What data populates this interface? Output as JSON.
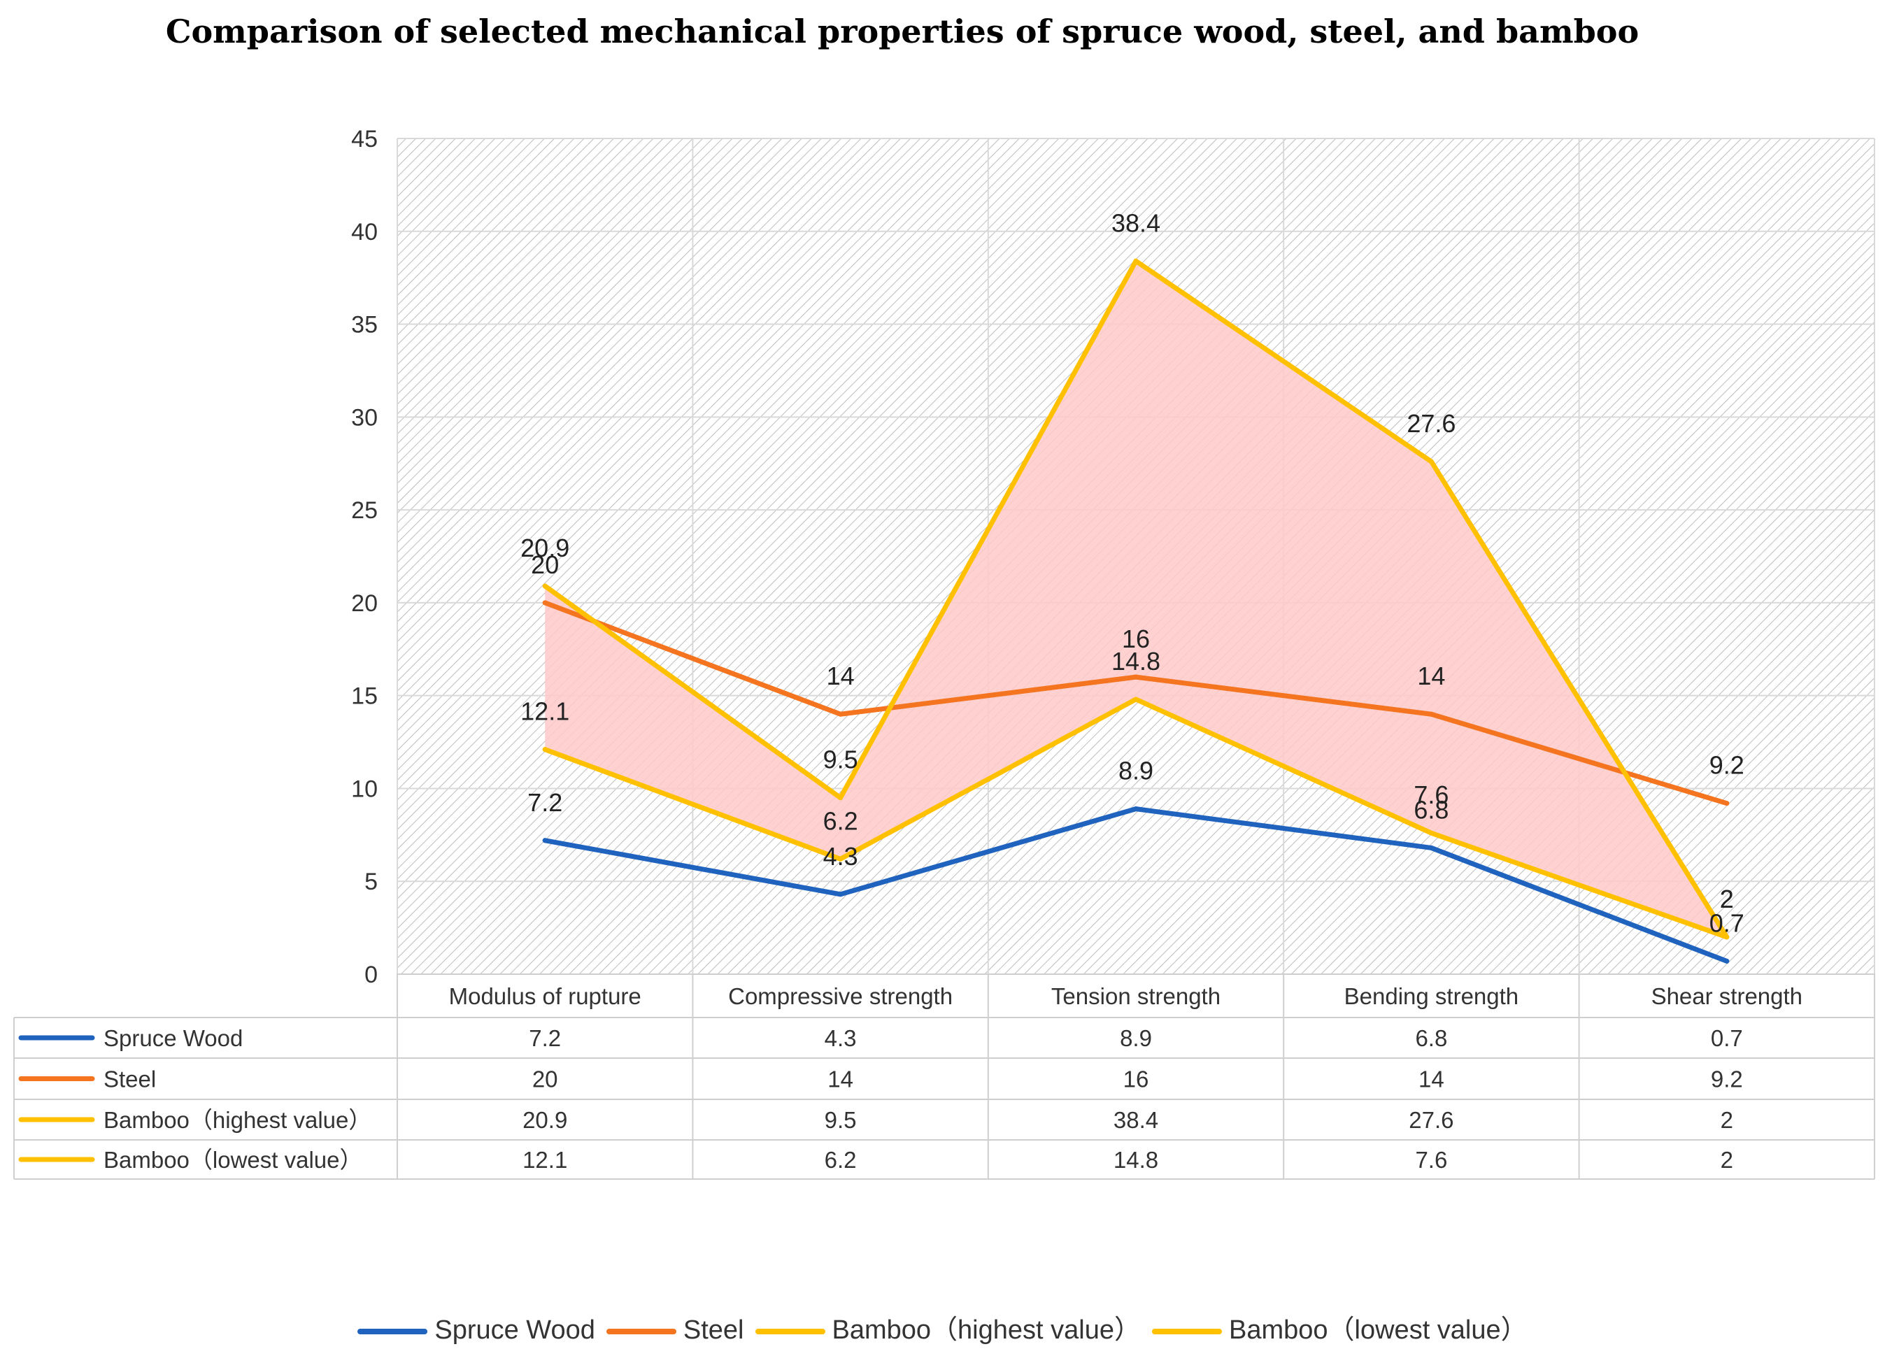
{
  "chart_data": {
    "type": "line",
    "title": "Comparison of selected mechanical properties of spruce wood, steel, and bamboo",
    "categories": [
      "Modulus of rupture",
      "Compressive strength",
      "Tension strength",
      "Bending strength",
      "Shear strength"
    ],
    "ylim": [
      0,
      45
    ],
    "yticks": [
      0,
      5,
      10,
      15,
      20,
      25,
      30,
      35,
      40,
      45
    ],
    "grid": true,
    "legend_position": "bottom",
    "series": [
      {
        "name": "Spruce Wood",
        "color": "#1f63be",
        "values": [
          7.2,
          4.3,
          8.9,
          6.8,
          0.7
        ]
      },
      {
        "name": "Steel",
        "color": "#f47420",
        "values": [
          20,
          14,
          16,
          14,
          9.2
        ]
      },
      {
        "name": "Bamboo（highest value）",
        "color": "#ffc000",
        "values": [
          20.9,
          9.5,
          38.4,
          27.6,
          2
        ]
      },
      {
        "name": "Bamboo（lowest value）",
        "color": "#ffc000",
        "values": [
          12.1,
          6.2,
          14.8,
          7.6,
          2
        ]
      }
    ],
    "band_fill": "#ffc9c9",
    "legend_labels": [
      "Spruce Wood",
      "Steel",
      "Bamboo（highest value）",
      "Bamboo（lowest value）"
    ]
  }
}
